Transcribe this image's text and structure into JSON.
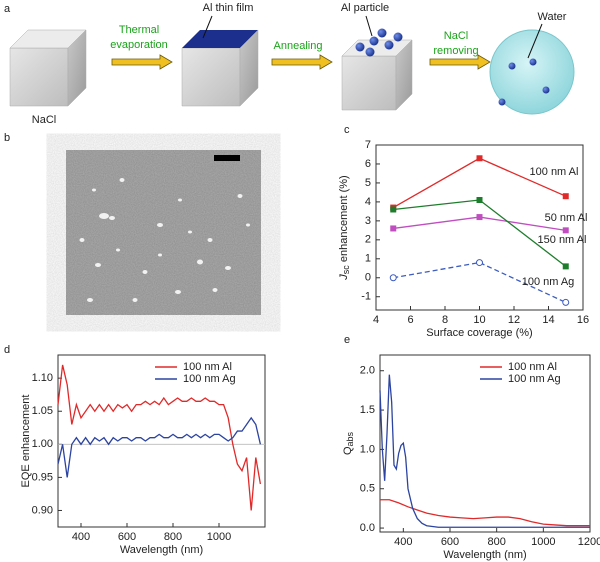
{
  "panel_labels": [
    "a",
    "b",
    "c",
    "d",
    "e"
  ],
  "schematic": {
    "start": "NaCl",
    "step1": [
      "Thermal",
      "evaporation"
    ],
    "film": "Al thin film",
    "step2": "Annealing",
    "particle": "Al particle",
    "step3": [
      "NaCl",
      "removing"
    ],
    "water": "Water"
  },
  "chart_data": [
    {
      "type": "line",
      "x_label": "Surface coverage (%)",
      "y_label": "J",
      "y_label_subscript": "sc",
      "y_label_suffix": " enhancement (%)",
      "x": [
        5,
        10,
        15
      ],
      "xlim": [
        4,
        16
      ],
      "xticks": [
        4,
        6,
        8,
        10,
        12,
        14,
        16
      ],
      "ylim": [
        -1.7,
        7
      ],
      "yticks": [
        -1,
        0,
        1,
        2,
        3,
        4,
        5,
        6,
        7
      ],
      "series": [
        {
          "name": "100 nm Al",
          "color": "#e02a2a",
          "marker": "square",
          "values": [
            3.7,
            6.3,
            4.3
          ]
        },
        {
          "name": "50 nm Al",
          "color": "#c04ec0",
          "marker": "square",
          "values": [
            2.6,
            3.2,
            2.5
          ]
        },
        {
          "name": "150 nm Al",
          "color": "#1e7d2c",
          "marker": "square",
          "values": [
            3.6,
            4.1,
            0.6
          ]
        },
        {
          "name": "100 nm Ag",
          "color": "#3c5cc0",
          "marker": "circle-open",
          "dashed": true,
          "values": [
            0,
            0.8,
            -1.3
          ]
        }
      ]
    },
    {
      "type": "line",
      "x_label": "Wavelength (nm)",
      "y_label": "EQE enhancement",
      "legend": "upper right",
      "x": [
        300,
        320,
        340,
        360,
        380,
        400,
        420,
        440,
        460,
        480,
        500,
        520,
        540,
        560,
        580,
        600,
        620,
        640,
        660,
        680,
        700,
        720,
        740,
        760,
        780,
        800,
        820,
        840,
        860,
        880,
        900,
        920,
        940,
        960,
        980,
        1000,
        1020,
        1040,
        1060,
        1080,
        1100,
        1120,
        1140,
        1160,
        1180
      ],
      "xlim": [
        300,
        1200
      ],
      "xticks": [
        400,
        600,
        800,
        1000
      ],
      "ylim": [
        0.875,
        1.135
      ],
      "yticks": [
        {
          "value": 0.9,
          "label": "0.90"
        },
        {
          "value": 0.95,
          "label": "0.95"
        },
        {
          "value": 1.0,
          "label": "1.00"
        },
        {
          "value": 1.05,
          "label": "1.05"
        },
        {
          "value": 1.1,
          "label": "1.10"
        }
      ],
      "reference_line": 1.0,
      "series": [
        {
          "name": "100 nm Al",
          "color": "#e02a2a",
          "values": [
            1.06,
            1.12,
            1.09,
            1.03,
            1.06,
            1.04,
            1.05,
            1.06,
            1.05,
            1.06,
            1.05,
            1.06,
            1.05,
            1.06,
            1.055,
            1.06,
            1.05,
            1.06,
            1.06,
            1.065,
            1.06,
            1.065,
            1.06,
            1.07,
            1.06,
            1.065,
            1.07,
            1.065,
            1.065,
            1.07,
            1.065,
            1.065,
            1.07,
            1.065,
            1.065,
            1.06,
            1.06,
            1.04,
            1.0,
            0.97,
            0.96,
            0.98,
            0.9,
            0.98,
            0.94
          ]
        },
        {
          "name": "100 nm Ag",
          "color": "#2c44a0",
          "values": [
            0.97,
            1.0,
            0.95,
            1.0,
            1.01,
            1.0,
            1.01,
            1.0,
            1.01,
            1.005,
            1.01,
            1.0,
            1.01,
            1.005,
            1.01,
            1.01,
            1.005,
            1.01,
            1.01,
            1.005,
            1.01,
            1.01,
            1.015,
            1.01,
            1.01,
            1.015,
            1.01,
            1.01,
            1.015,
            1.01,
            1.015,
            1.01,
            1.015,
            1.01,
            1.015,
            1.015,
            1.01,
            1.005,
            1.01,
            1.02,
            1.02,
            1.03,
            1.04,
            1.03,
            1.0
          ]
        }
      ]
    },
    {
      "type": "line",
      "x_label": "Wavelength (nm)",
      "y_label": "Q",
      "y_label_subscript": "abs",
      "legend": "upper right",
      "xlim": [
        300,
        1200
      ],
      "xticks": [
        400,
        600,
        800,
        1000,
        1200
      ],
      "ylim": [
        -0.05,
        2.2
      ],
      "yticks": [
        {
          "value": 0,
          "label": "0.0"
        },
        {
          "value": 0.5,
          "label": "0.5"
        },
        {
          "value": 1,
          "label": "1.0"
        },
        {
          "value": 1.5,
          "label": "1.5"
        },
        {
          "value": 2,
          "label": "2.0"
        }
      ],
      "series": [
        {
          "name": "100 nm Al",
          "color": "#e02a2a",
          "x": [
            300,
            340,
            380,
            420,
            460,
            500,
            550,
            600,
            650,
            700,
            750,
            800,
            850,
            900,
            950,
            1000,
            1050,
            1100,
            1150,
            1200
          ],
          "values": [
            0.36,
            0.36,
            0.32,
            0.27,
            0.23,
            0.19,
            0.16,
            0.14,
            0.13,
            0.12,
            0.13,
            0.14,
            0.14,
            0.12,
            0.08,
            0.05,
            0.04,
            0.03,
            0.03,
            0.03
          ]
        },
        {
          "name": "100 nm Ag",
          "color": "#2c44a0",
          "x": [
            300,
            310,
            320,
            330,
            340,
            350,
            360,
            370,
            380,
            390,
            400,
            410,
            420,
            440,
            460,
            480,
            500,
            550,
            600,
            800,
            1000,
            1200
          ],
          "values": [
            1.75,
            1.0,
            0.6,
            1.2,
            1.95,
            1.6,
            0.8,
            0.75,
            0.95,
            1.05,
            1.08,
            0.9,
            0.5,
            0.25,
            0.12,
            0.06,
            0.03,
            0.01,
            0.01,
            0.01,
            0.01,
            0.01
          ]
        }
      ]
    }
  ]
}
